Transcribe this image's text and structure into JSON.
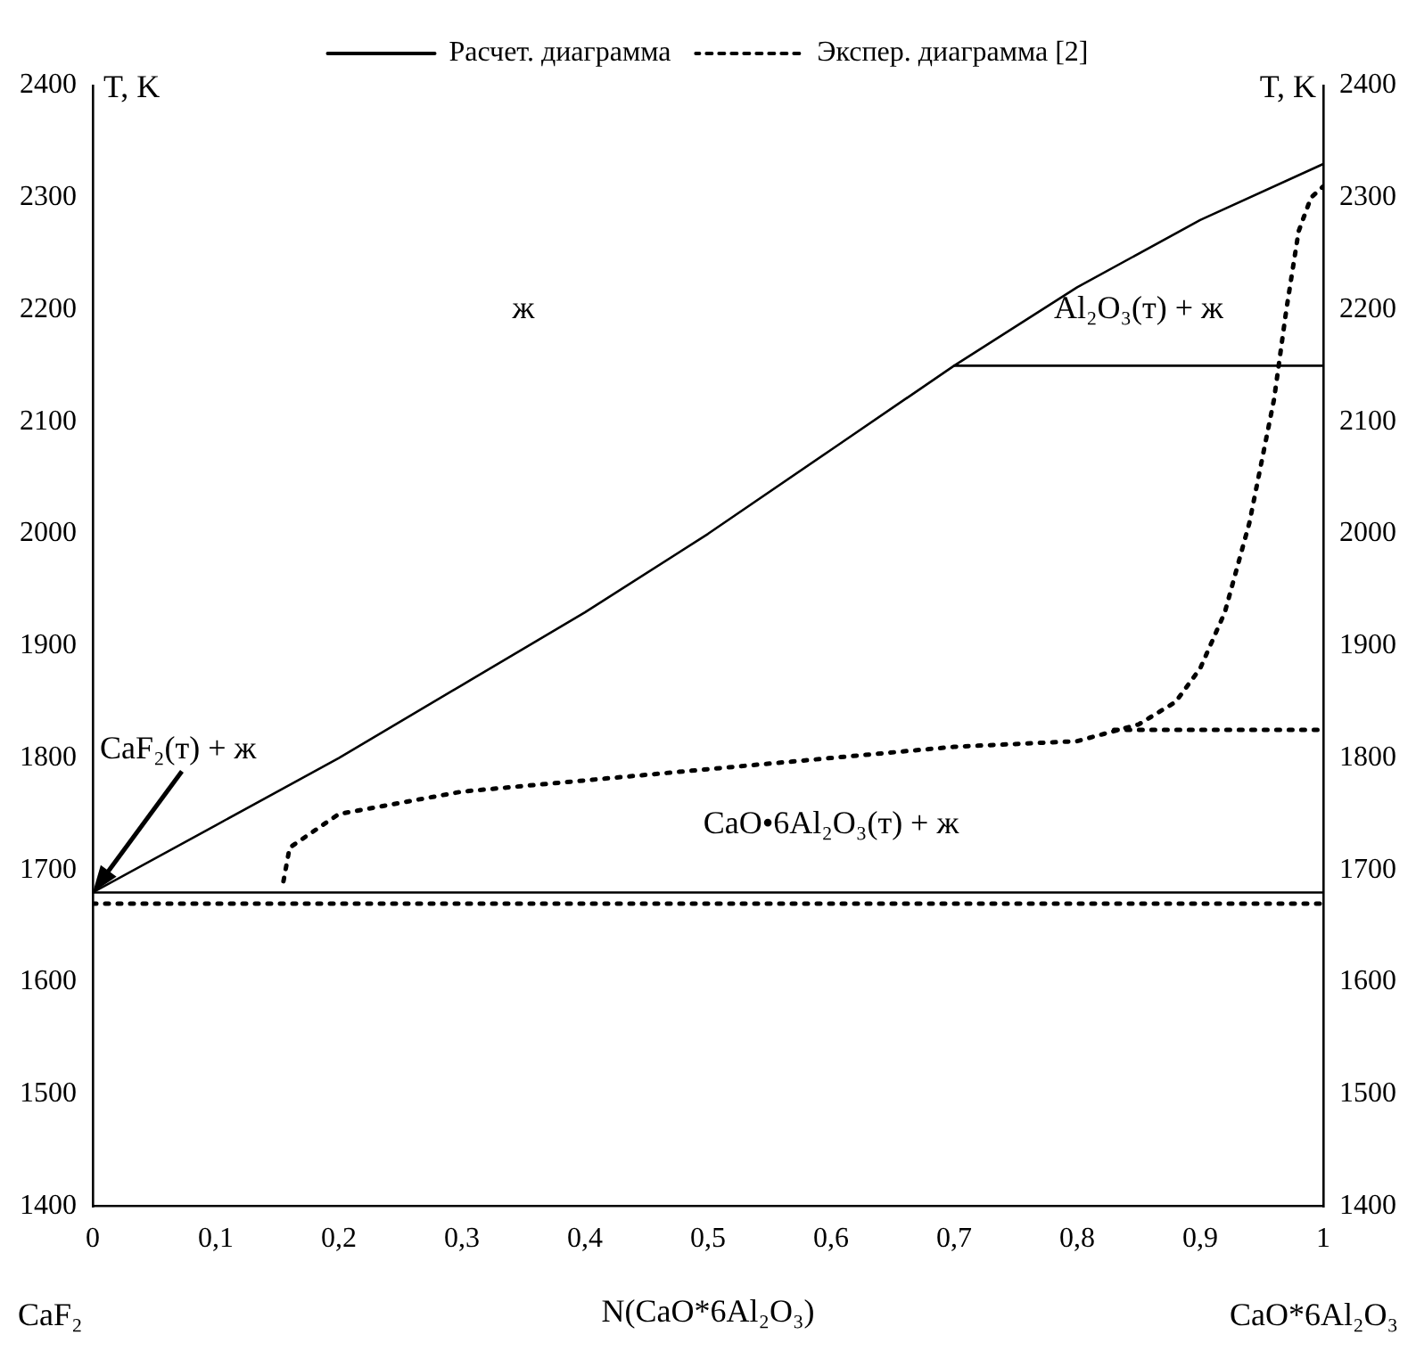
{
  "chart_data": {
    "type": "line",
    "xlabel": "N(CaO*6Al₂O₃)",
    "ylabel": "T, K",
    "y2label": "T, K",
    "xlim": [
      0,
      1
    ],
    "xticks": [
      0,
      {
        "value": 0.1,
        "label": "0,1"
      },
      {
        "value": 0.2,
        "label": "0,2"
      },
      {
        "value": 0.3,
        "label": "0,3"
      },
      {
        "value": 0.4,
        "label": "0,4"
      },
      {
        "value": 0.5,
        "label": "0,5"
      },
      {
        "value": 0.6,
        "label": "0,6"
      },
      {
        "value": 0.7,
        "label": "0,7"
      },
      {
        "value": 0.8,
        "label": "0,8"
      },
      {
        "value": 0.9,
        "label": "0,9"
      },
      1
    ],
    "ylim": [
      1400,
      2400
    ],
    "yticks": [
      1400,
      1500,
      1600,
      1700,
      1800,
      1900,
      2000,
      2100,
      2200,
      2300,
      2400
    ],
    "y2lim": [
      1400,
      2400
    ],
    "y2ticks": [
      1400,
      1500,
      1600,
      1700,
      1800,
      1900,
      2000,
      2100,
      2200,
      2300,
      2400
    ],
    "legend": "top",
    "grid": false,
    "marker": "none",
    "series": [
      {
        "name": "Расчет. диаграмма",
        "color": "#000000",
        "line_style": "solid",
        "x": [
          0,
          0.1,
          0.2,
          0.3,
          0.4,
          0.5,
          0.6,
          0.7,
          0.8,
          0.9,
          1
        ],
        "values": [
          1680,
          1740,
          1800,
          1865,
          1930,
          2000,
          2075,
          2150,
          2220,
          2280,
          2330
        ]
      },
      {
        "color": "#000000",
        "line_style": "solid",
        "x": [
          0.7,
          1
        ],
        "values": [
          2150,
          2150
        ]
      },
      {
        "color": "#000000",
        "line_style": "solid",
        "x": [
          0,
          1
        ],
        "values": [
          1680,
          1680
        ]
      },
      {
        "name": "Экспер. диаграмма [2]",
        "color": "#000000",
        "line_style": "dotted",
        "x": [
          0.155,
          0.16,
          0.2,
          0.3,
          0.4,
          0.5,
          0.6,
          0.7,
          0.8,
          0.85,
          0.88,
          0.9,
          0.92,
          0.94,
          0.96,
          0.97,
          0.98,
          0.99,
          1
        ],
        "values": [
          1690,
          1720,
          1750,
          1770,
          1780,
          1790,
          1800,
          1810,
          1815,
          1830,
          1850,
          1880,
          1930,
          2010,
          2120,
          2200,
          2270,
          2300,
          2310
        ]
      },
      {
        "color": "#000000",
        "line_style": "dotted",
        "x": [
          0.83,
          1
        ],
        "values": [
          1825,
          1825
        ]
      },
      {
        "color": "#000000",
        "line_style": "dotted",
        "x": [
          0,
          1
        ],
        "values": [
          1670,
          1670
        ]
      }
    ],
    "annotations": [
      "ж",
      "Al₂O₃(т) + ж",
      "CaO•6Al₂O₃(т) + ж",
      {
        "text": "CaF₂(т) + ж",
        "x": 0,
        "y": 1680
      },
      "CaF₂",
      "CaO*6Al₂O₃"
    ]
  }
}
